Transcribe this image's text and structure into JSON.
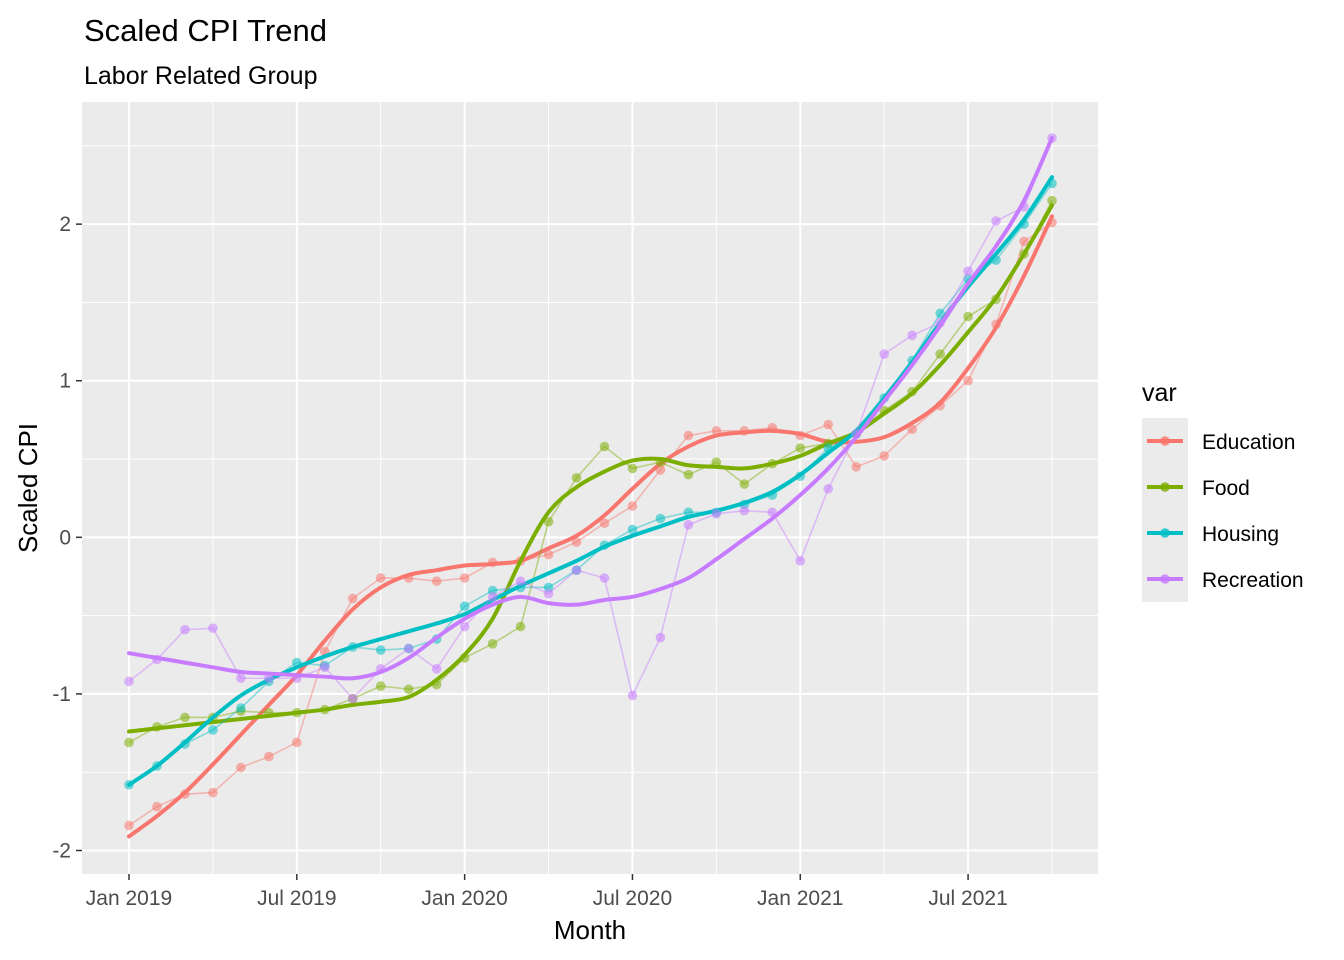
{
  "chart_data": {
    "type": "line",
    "title": "Scaled CPI Trend",
    "subtitle": "Labor Related Group",
    "xlabel": "Month",
    "ylabel": "Scaled CPI",
    "x_tick_labels": [
      "Jan 2019",
      "Jul 2019",
      "Jan 2020",
      "Jul 2020",
      "Jan 2021",
      "Jul 2021"
    ],
    "y_ticks": [
      -2,
      -1,
      0,
      1,
      2
    ],
    "ylim": [
      -2.15,
      2.78
    ],
    "xlim": [
      "2018-12",
      "2021-12"
    ],
    "grid": true,
    "legend_title": "var",
    "legend_position": "right",
    "x": [
      "2019-01",
      "2019-02",
      "2019-03",
      "2019-04",
      "2019-05",
      "2019-06",
      "2019-07",
      "2019-08",
      "2019-09",
      "2019-10",
      "2019-11",
      "2019-12",
      "2020-01",
      "2020-02",
      "2020-03",
      "2020-04",
      "2020-05",
      "2020-06",
      "2020-07",
      "2020-08",
      "2020-09",
      "2020-10",
      "2020-11",
      "2020-12",
      "2021-01",
      "2021-02",
      "2021-03",
      "2021-04",
      "2021-05",
      "2021-06",
      "2021-07",
      "2021-08",
      "2021-09",
      "2021-10"
    ],
    "series": [
      {
        "name": "Education",
        "color": "#F8766D",
        "values": [
          -1.84,
          -1.72,
          -1.64,
          -1.63,
          -1.47,
          -1.4,
          -1.31,
          -0.73,
          -0.39,
          -0.26,
          -0.26,
          -0.28,
          -0.26,
          -0.16,
          -0.15,
          -0.11,
          -0.03,
          0.09,
          0.2,
          0.43,
          0.65,
          0.68,
          0.68,
          0.7,
          0.65,
          0.72,
          0.45,
          0.52,
          0.69,
          0.84,
          1.0,
          1.36,
          1.89,
          2.01
        ],
        "smooth": [
          -1.91,
          -1.78,
          -1.63,
          -1.45,
          -1.26,
          -1.07,
          -0.88,
          -0.66,
          -0.46,
          -0.32,
          -0.24,
          -0.21,
          -0.18,
          -0.17,
          -0.15,
          -0.07,
          0.01,
          0.14,
          0.31,
          0.47,
          0.58,
          0.65,
          0.67,
          0.68,
          0.66,
          0.61,
          0.61,
          0.64,
          0.73,
          0.86,
          1.08,
          1.34,
          1.67,
          2.05
        ]
      },
      {
        "name": "Food",
        "color": "#7CAE00",
        "values": [
          -1.31,
          -1.21,
          -1.15,
          -1.15,
          -1.11,
          -1.12,
          -1.12,
          -1.1,
          -1.03,
          -0.95,
          -0.97,
          -0.94,
          -0.77,
          -0.68,
          -0.57,
          0.1,
          0.38,
          0.58,
          0.44,
          0.48,
          0.4,
          0.48,
          0.34,
          0.47,
          0.57,
          0.6,
          0.66,
          0.81,
          0.93,
          1.17,
          1.41,
          1.52,
          1.81,
          2.15
        ],
        "smooth": [
          -1.24,
          -1.22,
          -1.2,
          -1.18,
          -1.16,
          -1.14,
          -1.12,
          -1.1,
          -1.07,
          -1.05,
          -1.02,
          -0.91,
          -0.75,
          -0.52,
          -0.15,
          0.16,
          0.32,
          0.42,
          0.49,
          0.5,
          0.46,
          0.45,
          0.44,
          0.47,
          0.52,
          0.6,
          0.67,
          0.79,
          0.92,
          1.1,
          1.31,
          1.53,
          1.81,
          2.12
        ]
      },
      {
        "name": "Housing",
        "color": "#00BFC4",
        "values": [
          -1.58,
          -1.46,
          -1.32,
          -1.23,
          -1.09,
          -0.92,
          -0.8,
          -0.82,
          -0.7,
          -0.72,
          -0.71,
          -0.65,
          -0.44,
          -0.34,
          -0.32,
          -0.32,
          -0.21,
          -0.05,
          0.05,
          0.12,
          0.16,
          0.16,
          0.21,
          0.27,
          0.39,
          0.57,
          0.66,
          0.89,
          1.13,
          1.43,
          1.65,
          1.77,
          2.0,
          2.26
        ],
        "smooth": [
          -1.58,
          -1.46,
          -1.31,
          -1.15,
          -1.01,
          -0.91,
          -0.83,
          -0.76,
          -0.7,
          -0.65,
          -0.6,
          -0.55,
          -0.49,
          -0.4,
          -0.31,
          -0.23,
          -0.15,
          -0.06,
          0.01,
          0.07,
          0.13,
          0.17,
          0.22,
          0.29,
          0.4,
          0.54,
          0.68,
          0.89,
          1.12,
          1.37,
          1.6,
          1.81,
          2.03,
          2.3
        ]
      },
      {
        "name": "Recreation",
        "color": "#C77CFF",
        "values": [
          -0.92,
          -0.78,
          -0.59,
          -0.58,
          -0.9,
          -0.9,
          -0.9,
          -0.83,
          -1.03,
          -0.84,
          -0.71,
          -0.84,
          -0.57,
          -0.38,
          -0.28,
          -0.36,
          -0.21,
          -0.26,
          -1.01,
          -0.64,
          0.08,
          0.15,
          0.17,
          0.16,
          -0.15,
          0.31,
          0.66,
          1.17,
          1.29,
          1.37,
          1.7,
          2.02,
          2.11,
          2.55
        ],
        "smooth": [
          -0.74,
          -0.77,
          -0.8,
          -0.83,
          -0.86,
          -0.87,
          -0.88,
          -0.89,
          -0.9,
          -0.86,
          -0.77,
          -0.64,
          -0.52,
          -0.43,
          -0.38,
          -0.42,
          -0.43,
          -0.4,
          -0.38,
          -0.33,
          -0.26,
          -0.14,
          -0.01,
          0.12,
          0.27,
          0.44,
          0.64,
          0.87,
          1.1,
          1.35,
          1.62,
          1.86,
          2.15,
          2.55
        ]
      }
    ]
  }
}
